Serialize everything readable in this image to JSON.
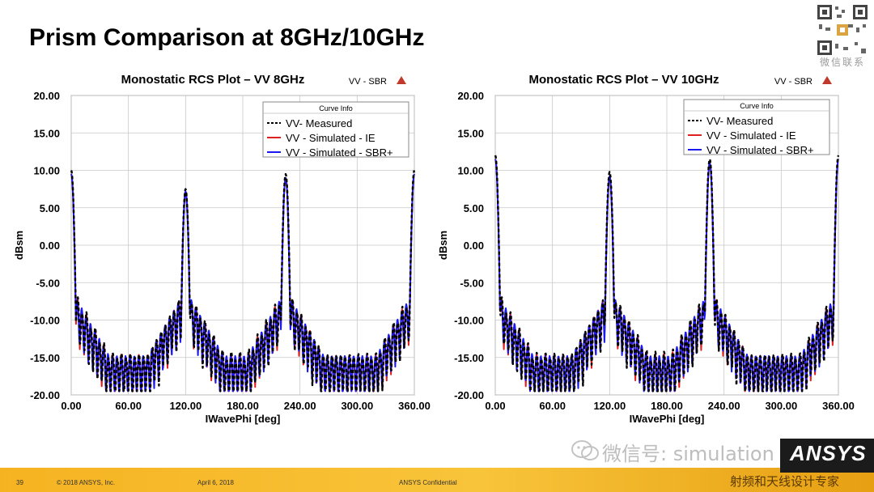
{
  "slide": {
    "title": "Prism Comparison at 8GHz/10GHz",
    "qr_caption": "微信联系",
    "footer": {
      "page_number": "39",
      "copyright": "© 2018 ANSYS, Inc.",
      "date": "April 6, 2018",
      "confidential": "ANSYS Confidential"
    },
    "watermark": "微信号: simulation",
    "logo_text": "ANSYS",
    "tagline": "射频和天线设计专家",
    "colors": {
      "measured": "#000000",
      "ie": "#e02020",
      "sbr": "#1a1aee",
      "accent": "#f6b321"
    }
  },
  "chart_data": [
    {
      "type": "line",
      "title": "Monostatic RCS Plot – VV 8GHz",
      "tag": "VV - SBR",
      "xlabel": "IWavePhi [deg]",
      "ylabel": "dBsm",
      "xlim": [
        0,
        360
      ],
      "ylim": [
        -20,
        20
      ],
      "xticks": [
        "0.00",
        "60.00",
        "120.00",
        "180.00",
        "240.00",
        "300.00",
        "360.00"
      ],
      "yticks": [
        "20.00",
        "15.00",
        "10.00",
        "5.00",
        "0.00",
        "-5.00",
        "-10.00",
        "-15.00",
        "-20.00"
      ],
      "legend_title": "Curve Info",
      "series": [
        {
          "name": "VV- Measured",
          "style": "dashed",
          "peaks": [
            [
              0,
              10.0
            ],
            [
              120,
              7.5
            ],
            [
              225,
              9.5
            ],
            [
              360,
              10.0
            ]
          ],
          "offset": 0.6
        },
        {
          "name": "VV - Simulated - IE",
          "style": "solid",
          "peaks": [
            [
              0,
              9.5
            ],
            [
              120,
              7.2
            ],
            [
              225,
              9.0
            ],
            [
              360,
              9.5
            ]
          ],
          "offset": 0.3
        },
        {
          "name": "VV - Simulated - SBR+",
          "style": "solid",
          "peaks": [
            [
              0,
              9.5
            ],
            [
              120,
              7.2
            ],
            [
              225,
              9.0
            ],
            [
              360,
              9.5
            ]
          ],
          "offset": 0.0
        }
      ]
    },
    {
      "type": "line",
      "title": "Monostatic RCS Plot – VV 10GHz",
      "tag": "VV - SBR",
      "xlabel": "IWavePhi [deg]",
      "ylabel": "dBsm",
      "xlim": [
        0,
        360
      ],
      "ylim": [
        -20,
        20
      ],
      "xticks": [
        "0.00",
        "60.00",
        "120.00",
        "180.00",
        "240.00",
        "300.00",
        "360.00"
      ],
      "yticks": [
        "20.00",
        "15.00",
        "10.00",
        "5.00",
        "0.00",
        "-5.00",
        "-10.00",
        "-15.00",
        "-20.00"
      ],
      "legend_title": "Curve Info",
      "series": [
        {
          "name": "VV- Measured",
          "style": "dashed",
          "peaks": [
            [
              0,
              12.0
            ],
            [
              120,
              9.8
            ],
            [
              225,
              11.5
            ],
            [
              360,
              12.0
            ]
          ],
          "offset": 0.6
        },
        {
          "name": "VV - Simulated - IE",
          "style": "solid",
          "peaks": [
            [
              0,
              11.5
            ],
            [
              120,
              9.2
            ],
            [
              225,
              11.0
            ],
            [
              360,
              11.5
            ]
          ],
          "offset": 0.3
        },
        {
          "name": "VV - Simulated - SBR+",
          "style": "solid",
          "peaks": [
            [
              0,
              11.5
            ],
            [
              120,
              9.2
            ],
            [
              225,
              11.0
            ],
            [
              360,
              11.5
            ]
          ],
          "offset": 0.0
        }
      ]
    }
  ]
}
